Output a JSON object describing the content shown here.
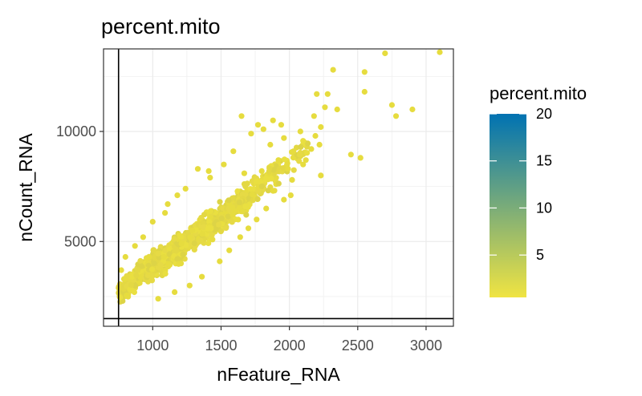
{
  "chart_data": {
    "type": "scatter",
    "title": "percent.mito",
    "xlabel": "nFeature_RNA",
    "ylabel": "nCount_RNA",
    "xlim": [
      640,
      3200
    ],
    "ylim": [
      1150,
      13750
    ],
    "x_ticks": [
      1000,
      1500,
      2000,
      2500,
      3000
    ],
    "y_ticks": [
      5000,
      10000
    ],
    "grid": true,
    "reference_lines": {
      "vertical_x": 750,
      "horizontal_y": 1500
    },
    "color_variable": "percent.mito",
    "colorbar": {
      "title": "percent.mito",
      "ticks": [
        5,
        10,
        15,
        20
      ],
      "range": [
        0.5,
        20
      ],
      "low_color": "#f0e442",
      "high_color": "#0072b2",
      "position": "right"
    },
    "point_color": "#e6dc3f",
    "outlier_points": [
      {
        "x": 3100,
        "y": 13600
      },
      {
        "x": 2700,
        "y": 13550
      },
      {
        "x": 2550,
        "y": 12700
      },
      {
        "x": 2320,
        "y": 12800
      },
      {
        "x": 2550,
        "y": 11800
      },
      {
        "x": 2900,
        "y": 11000
      },
      {
        "x": 2780,
        "y": 10700
      },
      {
        "x": 2750,
        "y": 11200
      },
      {
        "x": 2350,
        "y": 11000
      },
      {
        "x": 2260,
        "y": 11100
      },
      {
        "x": 2200,
        "y": 11700
      },
      {
        "x": 2280,
        "y": 11700
      },
      {
        "x": 2180,
        "y": 10700
      },
      {
        "x": 2230,
        "y": 10200
      },
      {
        "x": 2190,
        "y": 9800
      },
      {
        "x": 2520,
        "y": 8800
      },
      {
        "x": 2450,
        "y": 8950
      },
      {
        "x": 2220,
        "y": 9400
      },
      {
        "x": 2100,
        "y": 8500
      },
      {
        "x": 2230,
        "y": 8000
      },
      {
        "x": 2020,
        "y": 7800
      },
      {
        "x": 1940,
        "y": 10300
      },
      {
        "x": 1880,
        "y": 10500
      },
      {
        "x": 1810,
        "y": 10100
      },
      {
        "x": 1770,
        "y": 10300
      },
      {
        "x": 1650,
        "y": 10700
      },
      {
        "x": 1720,
        "y": 9900
      },
      {
        "x": 2030,
        "y": 9100
      },
      {
        "x": 1960,
        "y": 9700
      },
      {
        "x": 2120,
        "y": 8700
      },
      {
        "x": 1990,
        "y": 8300
      },
      {
        "x": 2160,
        "y": 9200
      },
      {
        "x": 2080,
        "y": 10000
      },
      {
        "x": 1880,
        "y": 7300
      },
      {
        "x": 1960,
        "y": 6900
      },
      {
        "x": 1760,
        "y": 6000
      },
      {
        "x": 1830,
        "y": 6500
      },
      {
        "x": 2010,
        "y": 7100
      },
      {
        "x": 1700,
        "y": 5600
      },
      {
        "x": 1920,
        "y": 8700
      },
      {
        "x": 1860,
        "y": 9400
      },
      {
        "x": 1590,
        "y": 9100
      },
      {
        "x": 1420,
        "y": 7900
      },
      {
        "x": 1330,
        "y": 8300
      },
      {
        "x": 1410,
        "y": 8200
      },
      {
        "x": 1640,
        "y": 5200
      },
      {
        "x": 1560,
        "y": 4600
      },
      {
        "x": 1490,
        "y": 4100
      },
      {
        "x": 1360,
        "y": 3400
      },
      {
        "x": 1270,
        "y": 3000
      },
      {
        "x": 1160,
        "y": 2700
      },
      {
        "x": 1040,
        "y": 2400
      },
      {
        "x": 1110,
        "y": 6700
      },
      {
        "x": 1180,
        "y": 7100
      },
      {
        "x": 1240,
        "y": 7400
      },
      {
        "x": 1000,
        "y": 5900
      },
      {
        "x": 1090,
        "y": 6300
      },
      {
        "x": 870,
        "y": 4800
      },
      {
        "x": 930,
        "y": 5200
      },
      {
        "x": 800,
        "y": 4300
      },
      {
        "x": 770,
        "y": 3700
      },
      {
        "x": 790,
        "y": 3300
      },
      {
        "x": 1520,
        "y": 8500
      },
      {
        "x": 1670,
        "y": 8100
      },
      {
        "x": 1290,
        "y": 5500
      },
      {
        "x": 1210,
        "y": 4900
      }
    ],
    "density_bands": [
      {
        "x0": 750,
        "x1": 950,
        "center0": 2600,
        "center1": 3700,
        "spread": 900,
        "n": 220
      },
      {
        "x0": 950,
        "x1": 1150,
        "center0": 3700,
        "center1": 4500,
        "spread": 1100,
        "n": 260
      },
      {
        "x0": 1150,
        "x1": 1350,
        "center0": 4500,
        "center1": 5400,
        "spread": 1150,
        "n": 230
      },
      {
        "x0": 1350,
        "x1": 1550,
        "center0": 5400,
        "center1": 6300,
        "spread": 1150,
        "n": 180
      },
      {
        "x0": 1550,
        "x1": 1750,
        "center0": 6300,
        "center1": 7300,
        "spread": 1100,
        "n": 130
      },
      {
        "x0": 1750,
        "x1": 1950,
        "center0": 7300,
        "center1": 8400,
        "spread": 1000,
        "n": 80
      },
      {
        "x0": 1950,
        "x1": 2150,
        "center0": 8400,
        "center1": 9300,
        "spread": 800,
        "n": 30
      }
    ]
  }
}
